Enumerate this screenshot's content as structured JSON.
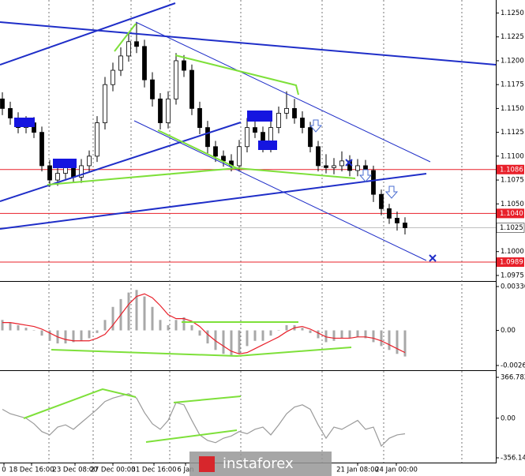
{
  "chart_data": [
    {
      "type": "candlestick",
      "open": [
        1.116,
        1.115,
        1.114,
        1.113,
        1.1135,
        1.1125,
        1.109,
        1.1075,
        1.1082,
        1.1088,
        1.1078,
        1.109,
        1.11,
        1.1135,
        1.1175,
        1.119,
        1.1205,
        1.122,
        1.1215,
        1.118,
        1.116,
        1.1135,
        1.116,
        1.12,
        1.119,
        1.115,
        1.113,
        1.111,
        1.11,
        1.1095,
        1.109,
        1.111,
        1.113,
        1.1125,
        1.111,
        1.113,
        1.1145,
        1.115,
        1.114,
        1.113,
        1.111,
        1.109,
        1.1088,
        1.109,
        1.1095,
        1.1085,
        1.109,
        1.1085,
        1.106,
        1.1045,
        1.1035,
        1.103
      ],
      "high": [
        1.1167,
        1.1157,
        1.1146,
        1.1142,
        1.1141,
        1.1131,
        1.1096,
        1.109,
        1.1095,
        1.1094,
        1.1097,
        1.1106,
        1.1142,
        1.1183,
        1.1198,
        1.1214,
        1.123,
        1.124,
        1.1222,
        1.1188,
        1.1166,
        1.1168,
        1.1208,
        1.1206,
        1.1196,
        1.1157,
        1.1137,
        1.1116,
        1.1106,
        1.1102,
        1.1117,
        1.114,
        1.1138,
        1.1131,
        1.1137,
        1.1152,
        1.1168,
        1.116,
        1.1147,
        1.1136,
        1.1116,
        1.1102,
        1.1098,
        1.1105,
        1.1101,
        1.1097,
        1.1096,
        1.109,
        1.1065,
        1.105,
        1.1042,
        1.1036
      ],
      "low": [
        1.1143,
        1.1133,
        1.1124,
        1.1124,
        1.1119,
        1.1084,
        1.1068,
        1.1069,
        1.1076,
        1.1072,
        1.1072,
        1.1084,
        1.1094,
        1.1128,
        1.1168,
        1.1184,
        1.1199,
        1.1208,
        1.1172,
        1.1152,
        1.1128,
        1.1129,
        1.1154,
        1.1183,
        1.1143,
        1.1123,
        1.1103,
        1.1094,
        1.1089,
        1.1084,
        1.1084,
        1.1104,
        1.1119,
        1.1104,
        1.1104,
        1.1124,
        1.1139,
        1.1134,
        1.1124,
        1.1104,
        1.1084,
        1.1082,
        1.1081,
        1.1084,
        1.1079,
        1.1079,
        1.1078,
        1.1052,
        1.1038,
        1.1029,
        1.1022,
        1.1018
      ],
      "close": [
        1.115,
        1.114,
        1.113,
        1.1135,
        1.1125,
        1.109,
        1.1075,
        1.1082,
        1.1088,
        1.1078,
        1.109,
        1.11,
        1.1135,
        1.1175,
        1.119,
        1.1205,
        1.122,
        1.1215,
        1.118,
        1.116,
        1.1135,
        1.116,
        1.12,
        1.119,
        1.115,
        1.113,
        1.111,
        1.11,
        1.1095,
        1.109,
        1.111,
        1.113,
        1.1125,
        1.111,
        1.113,
        1.1145,
        1.115,
        1.114,
        1.113,
        1.111,
        1.109,
        1.1088,
        1.109,
        1.1095,
        1.1085,
        1.109,
        1.1085,
        1.106,
        1.1045,
        1.1035,
        1.103,
        1.1025
      ],
      "xlim": [
        -0.3,
        62.5
      ],
      "xticks": [
        {
          "value": 0.2,
          "label": "0"
        },
        {
          "value": 3.7,
          "label": "18 Dec 16:00"
        },
        {
          "value": 9.2,
          "label": "23 Dec 08:00"
        },
        {
          "value": 14,
          "label": "27 Dec 00:00"
        },
        {
          "value": 19.2,
          "label": "31 Dec 16:00"
        },
        {
          "value": 23.2,
          "label": "6 Jan"
        },
        {
          "value": 45,
          "label": "21 Jan 08:00"
        },
        {
          "value": 49.9,
          "label": "24 Jan 00:00"
        }
      ],
      "ylim": [
        1.097,
        1.1262
      ],
      "yticks": [
        {
          "value": 1.125,
          "label": "1.1250"
        },
        {
          "value": 1.1225,
          "label": "1.1225"
        },
        {
          "value": 1.12,
          "label": "1.1200"
        },
        {
          "value": 1.1175,
          "label": "1.1175"
        },
        {
          "value": 1.115,
          "label": "1.1150"
        },
        {
          "value": 1.1125,
          "label": "1.1125"
        },
        {
          "value": 1.11,
          "label": "1.1100"
        },
        {
          "value": 1.1075,
          "label": "1.1075"
        },
        {
          "value": 1.105,
          "label": "1.1050"
        },
        {
          "value": 1.1,
          "label": "1.1000"
        },
        {
          "value": 1.0975,
          "label": "1.0975"
        }
      ],
      "levels": [
        {
          "value": 1.1086,
          "label": "1.1086"
        },
        {
          "value": 1.104,
          "label": "1.1040"
        },
        {
          "value": 1.0989,
          "label": "1.0989"
        }
      ],
      "level_color": "#e8202a",
      "current": {
        "value": 1.1025,
        "label": "1.1025"
      },
      "watermark": "instaforex"
    },
    {
      "type": "macd",
      "series": [
        {
          "values": [
            0.0008,
            0.0006,
            0.0004,
            0.0002,
            0.0,
            -0.0004,
            -0.0008,
            -0.001,
            -0.001,
            -0.0009,
            -0.0008,
            -0.0006,
            -0.0002,
            0.0008,
            0.0018,
            0.0024,
            0.0029,
            0.0031,
            0.0026,
            0.0018,
            0.0008,
            0.0004,
            0.0008,
            0.001,
            0.0004,
            -0.0004,
            -0.001,
            -0.0015,
            -0.0018,
            -0.002,
            -0.0018,
            -0.0012,
            -0.0008,
            -0.0008,
            -0.0004,
            0.0,
            0.0004,
            0.0004,
            0.0002,
            -0.0002,
            -0.0006,
            -0.0009,
            -0.0008,
            -0.0006,
            -0.0006,
            -0.0005,
            -0.0006,
            -0.0009,
            -0.0012,
            -0.0015,
            -0.0018,
            -0.002
          ],
          "color": "#a8a8a8"
        },
        {
          "values": [
            0.0006,
            0.0006,
            0.0005,
            0.0004,
            0.0003,
            0.0001,
            -0.0002,
            -0.0005,
            -0.0007,
            -0.0008,
            -0.0008,
            -0.0008,
            -0.0006,
            -0.0003,
            0.0004,
            0.0012,
            0.002,
            0.0026,
            0.0028,
            0.0025,
            0.0019,
            0.0012,
            0.0009,
            0.0009,
            0.0007,
            0.0003,
            -0.0003,
            -0.0008,
            -0.0012,
            -0.0016,
            -0.0018,
            -0.0017,
            -0.0014,
            -0.0011,
            -0.0008,
            -0.0005,
            -0.0001,
            0.0002,
            0.0003,
            0.0001,
            -0.0002,
            -0.0005,
            -0.0006,
            -0.0006,
            -0.0006,
            -0.0005,
            -0.0005,
            -0.0006,
            -0.0008,
            -0.0011,
            -0.0014,
            -0.0017
          ],
          "color": "#e8202a"
        }
      ],
      "ylim": [
        -0.00269,
        0.00336
      ],
      "yticks": [
        {
          "value": 0.00336,
          "label": "0.00336"
        },
        {
          "value": 0,
          "label": "0.00"
        },
        {
          "value": -0.00269,
          "label": "-0.00269"
        }
      ]
    },
    {
      "type": "line",
      "values": [
        80,
        40,
        20,
        0,
        -50,
        -120,
        -150,
        -80,
        -60,
        -100,
        -40,
        20,
        80,
        150,
        180,
        200,
        220,
        180,
        50,
        -50,
        -100,
        -20,
        140,
        120,
        -20,
        -150,
        -200,
        -220,
        -180,
        -160,
        -120,
        -140,
        -100,
        -80,
        -150,
        -60,
        40,
        100,
        120,
        80,
        -60,
        -180,
        -80,
        -100,
        -60,
        -20,
        -100,
        -80,
        -250,
        -180,
        -150,
        -140
      ],
      "color": "#9a9a9a",
      "ylim": [
        -356.145,
        366.782
      ],
      "yticks": [
        366.782,
        {
          "value": 0,
          "label": "0.00"
        },
        -356.145
      ]
    }
  ]
}
